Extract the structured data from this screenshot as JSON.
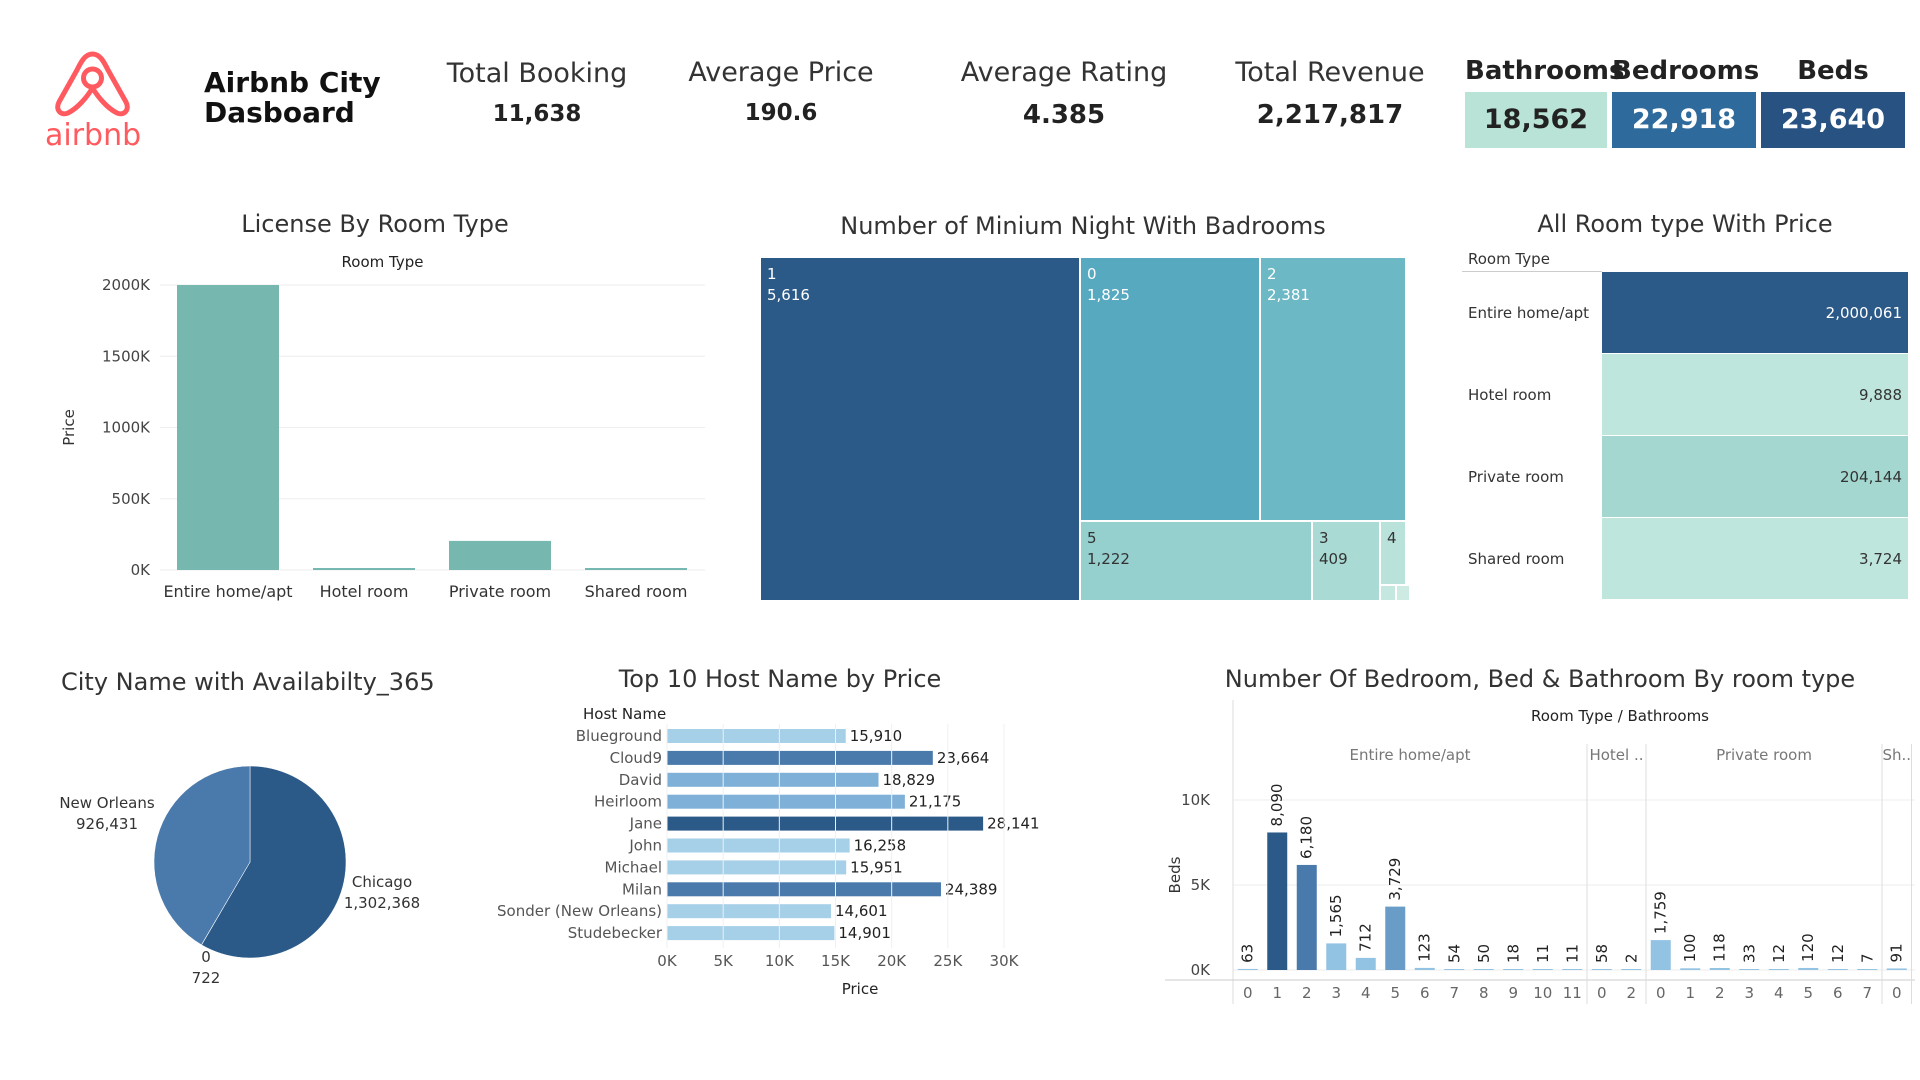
{
  "header": {
    "logo_text": "airbnb",
    "title_line1": "Airbnb City",
    "title_line2": "Dasboard"
  },
  "kpis": [
    {
      "label": "Total Booking",
      "value": "11,638"
    },
    {
      "label": "Average Price",
      "value": "190.6"
    },
    {
      "label": "Average Rating",
      "value": "4.385"
    },
    {
      "label": "Total Revenue",
      "value": "2,217,817"
    }
  ],
  "boxes": [
    {
      "label": "Bathrooms",
      "value": "18,562",
      "color": "#b8e3d6",
      "text_color": "#222222"
    },
    {
      "label": "Bedrooms",
      "value": "22,918",
      "color": "#2e6b9c",
      "text_color": "#ffffff"
    },
    {
      "label": "Beds",
      "value": "23,640",
      "color": "#275282",
      "text_color": "#ffffff"
    }
  ],
  "colors": {
    "teal_bar": "#76b7b0",
    "dark_blue": "#2c5a88",
    "mid_blue": "#4a7aab",
    "light_blue": "#a6cfe8"
  },
  "chart_data": [
    {
      "id": "license",
      "type": "bar",
      "title": "License By Room Type",
      "subtitle": "Room Type",
      "ylabel": "Price",
      "categories": [
        "Entire home/apt",
        "Hotel room",
        "Private room",
        "Shared room"
      ],
      "values": [
        2000061,
        9888,
        204144,
        3724
      ],
      "ylim": [
        0,
        2000000
      ],
      "yticks": [
        0,
        500000,
        1000000,
        1500000,
        2000000
      ],
      "ytick_labels": [
        "0K",
        "500K",
        "1000K",
        "1500K",
        "2000K"
      ]
    },
    {
      "id": "treemap",
      "type": "treemap",
      "title": "Number of Minium Night With Badrooms",
      "items": [
        {
          "label": "1",
          "value": "5,616"
        },
        {
          "label": "0",
          "value": "1,825"
        },
        {
          "label": "2",
          "value": "2,381"
        },
        {
          "label": "5",
          "value": "1,222"
        },
        {
          "label": "3",
          "value": "409"
        },
        {
          "label": "4",
          "value": ""
        }
      ]
    },
    {
      "id": "roomprice",
      "type": "table",
      "title": "All Room type With Price",
      "header": "Room Type",
      "rows": [
        {
          "label": "Entire home/apt",
          "value": "2,000,061",
          "color": "#2c5a88",
          "text_color": "#ffffff"
        },
        {
          "label": "Hotel room",
          "value": "9,888",
          "color": "#bfe6dc",
          "text_color": "#333333"
        },
        {
          "label": "Private room",
          "value": "204,144",
          "color": "#a3d7cf",
          "text_color": "#333333"
        },
        {
          "label": "Shared room",
          "value": "3,724",
          "color": "#bfe6dc",
          "text_color": "#333333"
        }
      ]
    },
    {
      "id": "pie",
      "type": "pie",
      "title": "City Name with Availabilty_365",
      "slices": [
        {
          "name": "Chicago",
          "value": 1302368,
          "label": "1,302,368",
          "color": "#2c5a88"
        },
        {
          "name": "0",
          "value": 722,
          "label": "722",
          "color": "#4a7aab"
        },
        {
          "name": "New Orleans",
          "value": 926431,
          "label": "926,431",
          "color": "#4a7aab"
        }
      ]
    },
    {
      "id": "hosts",
      "type": "bar",
      "orientation": "horizontal",
      "title": "Top 10 Host Name by Price",
      "category_header": "Host Name",
      "xlabel": "Price",
      "categories": [
        "Blueground",
        "Cloud9",
        "David",
        "Heirloom",
        "Jane",
        "John",
        "Michael",
        "Milan",
        "Sonder (New Orleans)",
        "Studebecker"
      ],
      "values": [
        15910,
        23664,
        18829,
        21175,
        28141,
        16258,
        15951,
        24389,
        14601,
        14901
      ],
      "value_labels": [
        "15,910",
        "23,664",
        "18,829",
        "21,175",
        "28,141",
        "16,258",
        "15,951",
        "24,389",
        "14,601",
        "14,901"
      ],
      "xlim": [
        0,
        30000
      ],
      "xticks": [
        0,
        5000,
        10000,
        15000,
        20000,
        25000,
        30000
      ],
      "xtick_labels": [
        "0K",
        "5K",
        "10K",
        "15K",
        "20K",
        "25K",
        "30K"
      ]
    },
    {
      "id": "beds",
      "type": "bar",
      "title": "Number Of Bedroom, Bed & Bathroom By room type",
      "header": "Room Type  /  Bathrooms",
      "ylabel": "Beds",
      "ylim": [
        0,
        10000
      ],
      "yticks": [
        0,
        5000,
        10000
      ],
      "ytick_labels": [
        "0K",
        "5K",
        "10K"
      ],
      "groups": [
        {
          "name": "Entire home/apt",
          "bars": [
            {
              "x": "0",
              "value": 63,
              "label": "63"
            },
            {
              "x": "1",
              "value": 8090,
              "label": "8,090"
            },
            {
              "x": "2",
              "value": 6180,
              "label": "6,180"
            },
            {
              "x": "3",
              "value": 1565,
              "label": "1,565"
            },
            {
              "x": "4",
              "value": 712,
              "label": "712"
            },
            {
              "x": "5",
              "value": 3729,
              "label": "3,729"
            },
            {
              "x": "6",
              "value": 123,
              "label": "123"
            },
            {
              "x": "7",
              "value": 54,
              "label": "54"
            },
            {
              "x": "8",
              "value": 50,
              "label": "50"
            },
            {
              "x": "9",
              "value": 18,
              "label": "18"
            },
            {
              "x": "10",
              "value": 11,
              "label": "11"
            },
            {
              "x": "11",
              "value": 11,
              "label": "11"
            }
          ]
        },
        {
          "name": "Hotel ..",
          "bars": [
            {
              "x": "0",
              "value": 58,
              "label": "58"
            },
            {
              "x": "2",
              "value": 2,
              "label": "2"
            }
          ]
        },
        {
          "name": "Private room",
          "bars": [
            {
              "x": "0",
              "value": 1759,
              "label": "1,759"
            },
            {
              "x": "1",
              "value": 100,
              "label": "100"
            },
            {
              "x": "2",
              "value": 118,
              "label": "118"
            },
            {
              "x": "3",
              "value": 33,
              "label": "33"
            },
            {
              "x": "4",
              "value": 12,
              "label": "12"
            },
            {
              "x": "5",
              "value": 120,
              "label": "120"
            },
            {
              "x": "6",
              "value": 12,
              "label": "12"
            },
            {
              "x": "7",
              "value": 7,
              "label": "7"
            }
          ]
        },
        {
          "name": "Sh..",
          "bars": [
            {
              "x": "0",
              "value": 91,
              "label": "91"
            }
          ]
        }
      ]
    }
  ]
}
